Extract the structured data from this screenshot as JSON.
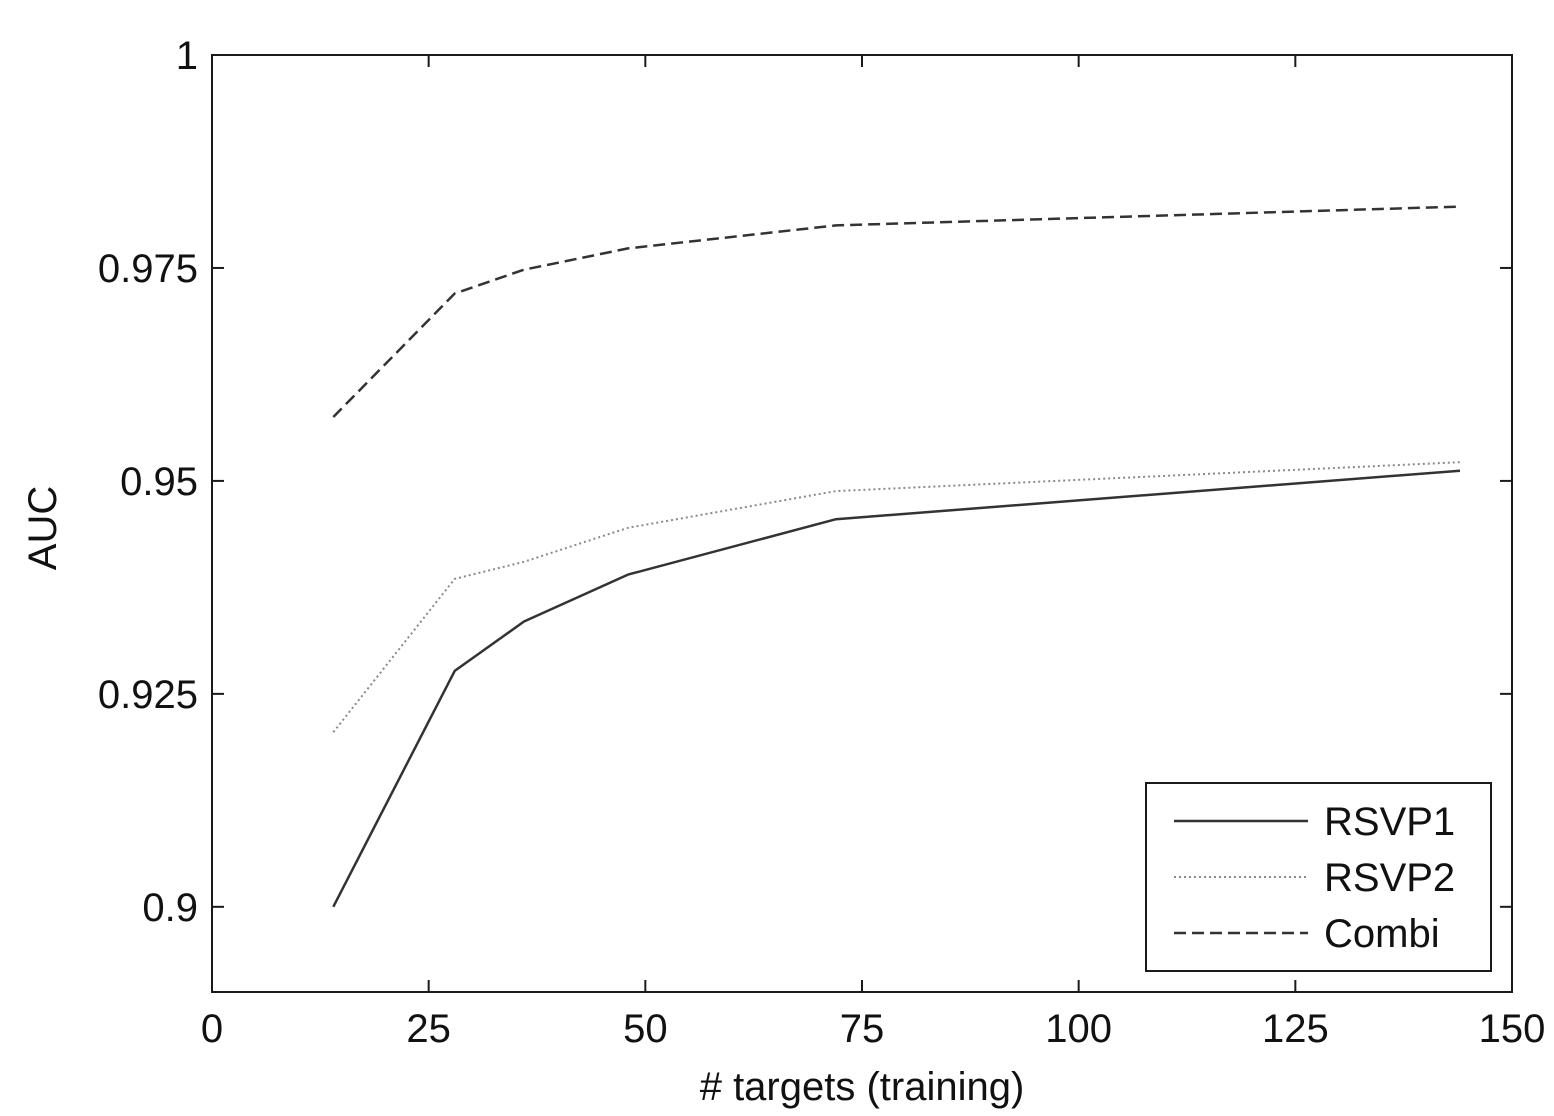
{
  "chart_data": {
    "type": "line",
    "title": "",
    "xlabel": "# targets (training)",
    "ylabel": "AUC",
    "xlim": [
      0,
      150
    ],
    "ylim": [
      0.89,
      1.0
    ],
    "x_ticks": [
      0,
      25,
      50,
      75,
      100,
      125,
      150
    ],
    "x_tick_labels": [
      "0",
      "25",
      "50",
      "75",
      "100",
      "125",
      "150"
    ],
    "y_ticks": [
      0.9,
      0.925,
      0.95,
      0.975,
      1.0
    ],
    "y_tick_labels": [
      "0.9",
      "0.925",
      "0.95",
      "0.975",
      "1"
    ],
    "grid": false,
    "legend_position": "bottom-right",
    "series": [
      {
        "name": "RSVP1",
        "style": "solid",
        "color": "#333333",
        "x": [
          14,
          28,
          36,
          48,
          72,
          144
        ],
        "y": [
          0.9,
          0.9277,
          0.9335,
          0.939,
          0.9455,
          0.9512
        ]
      },
      {
        "name": "RSVP2",
        "style": "dotted",
        "color": "#8a8a8a",
        "x": [
          14,
          28,
          36,
          48,
          72,
          144
        ],
        "y": [
          0.9205,
          0.9385,
          0.9405,
          0.9445,
          0.9488,
          0.9522
        ]
      },
      {
        "name": "Combi",
        "style": "dashed",
        "color": "#333333",
        "x": [
          14,
          28,
          36,
          48,
          72,
          144
        ],
        "y": [
          0.9575,
          0.972,
          0.9748,
          0.9773,
          0.98,
          0.9822
        ]
      }
    ]
  }
}
